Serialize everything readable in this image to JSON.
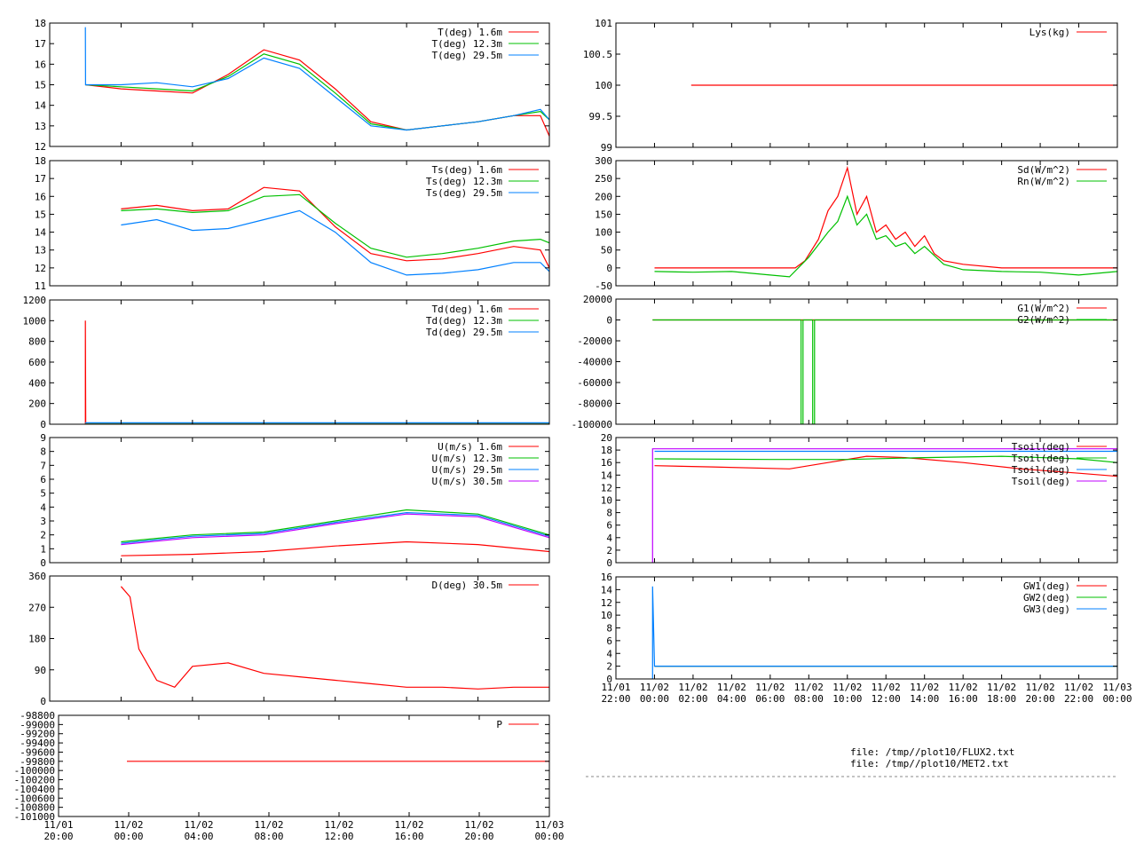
{
  "colors": {
    "red": "#ff0000",
    "green": "#00c000",
    "blue": "#0080ff",
    "purple": "#c000ff"
  },
  "file_lines": [
    "file: /tmp//plot10/FLUX2.txt",
    "file: /tmp//plot10/MET2.txt"
  ],
  "left_xticks": [
    {
      "t": 0,
      "l1": "11/01",
      "l2": "20:00"
    },
    {
      "t": 4,
      "l1": "11/02",
      "l2": "00:00"
    },
    {
      "t": 8,
      "l1": "11/02",
      "l2": "04:00"
    },
    {
      "t": 12,
      "l1": "11/02",
      "l2": "08:00"
    },
    {
      "t": 16,
      "l1": "11/02",
      "l2": "12:00"
    },
    {
      "t": 20,
      "l1": "11/02",
      "l2": "16:00"
    },
    {
      "t": 24,
      "l1": "11/02",
      "l2": "20:00"
    },
    {
      "t": 28,
      "l1": "11/03",
      "l2": "00:00"
    }
  ],
  "right_xticks": [
    {
      "t": 0,
      "l1": "11/01",
      "l2": "22:00"
    },
    {
      "t": 2,
      "l1": "11/02",
      "l2": "00:00"
    },
    {
      "t": 4,
      "l1": "11/02",
      "l2": "02:00"
    },
    {
      "t": 6,
      "l1": "11/02",
      "l2": "04:00"
    },
    {
      "t": 8,
      "l1": "11/02",
      "l2": "06:00"
    },
    {
      "t": 10,
      "l1": "11/02",
      "l2": "08:00"
    },
    {
      "t": 12,
      "l1": "11/02",
      "l2": "10:00"
    },
    {
      "t": 14,
      "l1": "11/02",
      "l2": "12:00"
    },
    {
      "t": 16,
      "l1": "11/02",
      "l2": "14:00"
    },
    {
      "t": 18,
      "l1": "11/02",
      "l2": "16:00"
    },
    {
      "t": 20,
      "l1": "11/02",
      "l2": "18:00"
    },
    {
      "t": 22,
      "l1": "11/02",
      "l2": "20:00"
    },
    {
      "t": 24,
      "l1": "11/02",
      "l2": "22:00"
    },
    {
      "t": 26,
      "l1": "11/03",
      "l2": "00:00"
    }
  ],
  "chart_data": [
    {
      "id": "T",
      "type": "line",
      "xlim": [
        0,
        28
      ],
      "ylim": [
        12,
        18
      ],
      "yticks": [
        "12",
        "13",
        "14",
        "15",
        "16",
        "17",
        "18"
      ],
      "series": [
        {
          "name": "T(deg)  1.6m",
          "color": "red",
          "x": [
            2,
            4,
            6,
            8,
            10,
            12,
            14,
            16,
            18,
            20,
            22,
            24,
            26,
            27.5,
            28
          ],
          "y": [
            15,
            14.8,
            14.7,
            14.6,
            15.5,
            16.7,
            16.2,
            14.8,
            13.2,
            12.8,
            13,
            13.2,
            13.5,
            13.5,
            12.5
          ]
        },
        {
          "name": "T(deg) 12.3m",
          "color": "green",
          "x": [
            2,
            4,
            6,
            8,
            10,
            12,
            14,
            16,
            18,
            20,
            22,
            24,
            26,
            27.5,
            28
          ],
          "y": [
            15,
            14.9,
            14.8,
            14.7,
            15.4,
            16.5,
            16,
            14.6,
            13.1,
            12.8,
            13,
            13.2,
            13.5,
            13.7,
            13.3
          ]
        },
        {
          "name": "T(deg) 29.5m",
          "color": "blue",
          "x": [
            2,
            2.01,
            4,
            6,
            8,
            10,
            12,
            14,
            16,
            18,
            20,
            22,
            24,
            26,
            27.5,
            28
          ],
          "y": [
            17.8,
            15,
            15,
            15.1,
            14.9,
            15.3,
            16.3,
            15.8,
            14.4,
            13,
            12.8,
            13,
            13.2,
            13.5,
            13.8,
            13.3
          ]
        }
      ]
    },
    {
      "id": "Ts",
      "type": "line",
      "xlim": [
        0,
        28
      ],
      "ylim": [
        11,
        18
      ],
      "yticks": [
        "11",
        "12",
        "13",
        "14",
        "15",
        "16",
        "17",
        "18"
      ],
      "series": [
        {
          "name": "Ts(deg)  1.6m",
          "color": "red",
          "x": [
            4,
            6,
            8,
            10,
            12,
            14,
            16,
            18,
            20,
            22,
            24,
            26,
            27.5,
            28
          ],
          "y": [
            15.3,
            15.5,
            15.2,
            15.3,
            16.5,
            16.3,
            14.3,
            12.8,
            12.4,
            12.5,
            12.8,
            13.2,
            13,
            12
          ]
        },
        {
          "name": "Ts(deg) 12.3m",
          "color": "green",
          "x": [
            4,
            6,
            8,
            10,
            12,
            14,
            16,
            18,
            20,
            22,
            24,
            26,
            27.5,
            28
          ],
          "y": [
            15.2,
            15.3,
            15.1,
            15.2,
            16,
            16.1,
            14.5,
            13.1,
            12.6,
            12.8,
            13.1,
            13.5,
            13.6,
            13.4
          ]
        },
        {
          "name": "Ts(deg) 29.5m",
          "color": "blue",
          "x": [
            4,
            6,
            8,
            10,
            12,
            14,
            16,
            18,
            20,
            22,
            24,
            26,
            27.5,
            28
          ],
          "y": [
            14.4,
            14.7,
            14.1,
            14.2,
            14.7,
            15.2,
            14,
            12.3,
            11.6,
            11.7,
            11.9,
            12.3,
            12.3,
            11.8
          ]
        }
      ]
    },
    {
      "id": "Td",
      "type": "line",
      "xlim": [
        0,
        28
      ],
      "ylim": [
        0,
        1200
      ],
      "yticks": [
        "0",
        "200",
        "400",
        "600",
        "800",
        "1000",
        "1200"
      ],
      "series": [
        {
          "name": "Td(deg)  1.6m",
          "color": "red",
          "x": [
            2,
            2,
            2.02,
            28
          ],
          "y": [
            0,
            1000,
            12,
            12
          ]
        },
        {
          "name": "Td(deg) 12.3m",
          "color": "green",
          "x": [
            2,
            28
          ],
          "y": [
            12,
            12
          ]
        },
        {
          "name": "Td(deg) 29.5m",
          "color": "blue",
          "x": [
            2,
            28
          ],
          "y": [
            14,
            14
          ]
        }
      ]
    },
    {
      "id": "U",
      "type": "line",
      "xlim": [
        0,
        28
      ],
      "ylim": [
        0,
        9
      ],
      "yticks": [
        "0",
        "1",
        "2",
        "3",
        "4",
        "5",
        "6",
        "7",
        "8",
        "9"
      ],
      "series": [
        {
          "name": "U(m/s)  1.6m",
          "color": "red",
          "x": [
            4,
            8,
            12,
            16,
            20,
            24,
            28
          ],
          "y": [
            0.5,
            0.6,
            0.8,
            1.2,
            1.5,
            1.3,
            0.8
          ]
        },
        {
          "name": "U(m/s) 12.3m",
          "color": "green",
          "x": [
            4,
            8,
            12,
            16,
            20,
            24,
            28
          ],
          "y": [
            1.5,
            2,
            2.2,
            3,
            3.8,
            3.5,
            2
          ]
        },
        {
          "name": "U(m/s) 29.5m",
          "color": "blue",
          "x": [
            4,
            8,
            12,
            16,
            20,
            24,
            28
          ],
          "y": [
            1.4,
            1.9,
            2.1,
            2.9,
            3.6,
            3.4,
            1.9
          ]
        },
        {
          "name": "U(m/s) 30.5m",
          "color": "purple",
          "x": [
            4,
            8,
            12,
            16,
            20,
            24,
            28
          ],
          "y": [
            1.3,
            1.8,
            2,
            2.8,
            3.5,
            3.3,
            1.8
          ]
        }
      ]
    },
    {
      "id": "D",
      "type": "line",
      "xlim": [
        0,
        28
      ],
      "ylim": [
        0,
        360
      ],
      "yticks": [
        "0",
        "90",
        "180",
        "270",
        "360"
      ],
      "series": [
        {
          "name": "D(deg) 30.5m",
          "color": "red",
          "x": [
            4,
            4.5,
            5,
            6,
            7,
            8,
            10,
            12,
            14,
            16,
            18,
            20,
            22,
            24,
            26,
            28
          ],
          "y": [
            330,
            300,
            150,
            60,
            40,
            100,
            110,
            80,
            70,
            60,
            50,
            40,
            40,
            35,
            40,
            40
          ]
        }
      ]
    },
    {
      "id": "P",
      "type": "line",
      "xlim": [
        0,
        28
      ],
      "ylim": [
        -98800,
        -101000
      ],
      "yticks": [
        "-101000",
        "-100800",
        "-100600",
        "-100400",
        "-100200",
        "-100000",
        "-99800",
        "-99600",
        "-99400",
        "-99200",
        "-99000",
        "-98800"
      ],
      "series": [
        {
          "name": "P",
          "color": "red",
          "x": [
            3.9,
            28
          ],
          "y": [
            -100000,
            -100000
          ]
        }
      ]
    },
    {
      "id": "Lys",
      "type": "line",
      "xlim": [
        0,
        26
      ],
      "ylim": [
        99,
        101
      ],
      "yticks": [
        "99",
        "99.5",
        "100",
        "100.5",
        "101"
      ],
      "series": [
        {
          "name": "Lys(kg)",
          "color": "red",
          "x": [
            3.9,
            26
          ],
          "y": [
            100,
            100
          ]
        }
      ]
    },
    {
      "id": "Rad",
      "type": "line",
      "xlim": [
        0,
        26
      ],
      "ylim": [
        -50,
        300
      ],
      "yticks": [
        "-50",
        "0",
        "50",
        "100",
        "150",
        "200",
        "250",
        "300"
      ],
      "series": [
        {
          "name": "Sd(W/m^2)",
          "color": "red",
          "x": [
            2,
            9.3,
            9.8,
            10.5,
            11,
            11.5,
            12,
            12.5,
            13,
            13.5,
            14,
            14.5,
            15,
            15.5,
            16,
            16.5,
            17,
            18,
            20,
            26
          ],
          "y": [
            0,
            0,
            20,
            80,
            160,
            200,
            280,
            150,
            200,
            100,
            120,
            80,
            100,
            60,
            90,
            40,
            20,
            10,
            0,
            0
          ]
        },
        {
          "name": "Rn(W/m^2)",
          "color": "green",
          "x": [
            2,
            4,
            6,
            8,
            9,
            10,
            11,
            11.5,
            12,
            12.5,
            13,
            13.5,
            14,
            14.5,
            15,
            15.5,
            16,
            17,
            18,
            20,
            22,
            24,
            26
          ],
          "y": [
            -10,
            -12,
            -10,
            -20,
            -25,
            30,
            100,
            130,
            200,
            120,
            150,
            80,
            90,
            60,
            70,
            40,
            60,
            10,
            -5,
            -10,
            -12,
            -20,
            -10
          ]
        }
      ]
    },
    {
      "id": "G",
      "type": "line",
      "xlim": [
        0,
        26
      ],
      "ylim": [
        -100000,
        20000
      ],
      "yticks": [
        "-100000",
        "-80000",
        "-60000",
        "-40000",
        "-20000",
        "0",
        "20000"
      ],
      "series": [
        {
          "name": "G1(W/m^2)",
          "color": "red",
          "x": [
            1.9,
            26
          ],
          "y": [
            0,
            0
          ]
        },
        {
          "name": "G2(W/m^2)",
          "color": "green",
          "x": [
            1.9,
            9.6,
            9.6,
            9.7,
            9.7,
            10.2,
            10.2,
            10.3,
            10.3,
            26
          ],
          "y": [
            0,
            0,
            -100000,
            -100000,
            0,
            0,
            -100000,
            -100000,
            0,
            0
          ]
        }
      ]
    },
    {
      "id": "Tsoil",
      "type": "line",
      "xlim": [
        0,
        26
      ],
      "ylim": [
        0,
        20
      ],
      "yticks": [
        "0",
        "2",
        "4",
        "6",
        "8",
        "10",
        "12",
        "14",
        "16",
        "18",
        "20"
      ],
      "series": [
        {
          "name": "Tsoil(deg)",
          "color": "red",
          "x": [
            2,
            5,
            9,
            11,
            13,
            15,
            18,
            21,
            24,
            26
          ],
          "y": [
            15.5,
            15.3,
            15,
            16,
            17,
            16.8,
            16,
            15,
            14.3,
            13.8
          ]
        },
        {
          "name": "Tsoil(deg)",
          "color": "green",
          "x": [
            2,
            8,
            12,
            16,
            20,
            24,
            26
          ],
          "y": [
            16.6,
            16.5,
            16.5,
            16.8,
            17,
            16.6,
            16
          ]
        },
        {
          "name": "Tsoil(deg)",
          "color": "blue",
          "x": [
            2,
            26
          ],
          "y": [
            17.8,
            17.8
          ]
        },
        {
          "name": "Tsoil(deg)",
          "color": "purple",
          "x": [
            1.9,
            1.9,
            2,
            26
          ],
          "y": [
            0,
            18.2,
            18.2,
            18.2
          ]
        }
      ]
    },
    {
      "id": "GW",
      "type": "line",
      "xlim": [
        0,
        26
      ],
      "ylim": [
        0,
        16
      ],
      "yticks": [
        "0",
        "2",
        "4",
        "6",
        "8",
        "10",
        "12",
        "14",
        "16"
      ],
      "series": [
        {
          "name": "GW1(deg)",
          "color": "red",
          "x": [
            2,
            26
          ],
          "y": [
            2,
            2
          ]
        },
        {
          "name": "GW2(deg)",
          "color": "green",
          "x": [
            2,
            26
          ],
          "y": [
            2,
            2
          ]
        },
        {
          "name": "GW3(deg)",
          "color": "blue",
          "x": [
            1.9,
            1.9,
            2,
            26
          ],
          "y": [
            0,
            14.5,
            2,
            2
          ]
        }
      ]
    }
  ]
}
